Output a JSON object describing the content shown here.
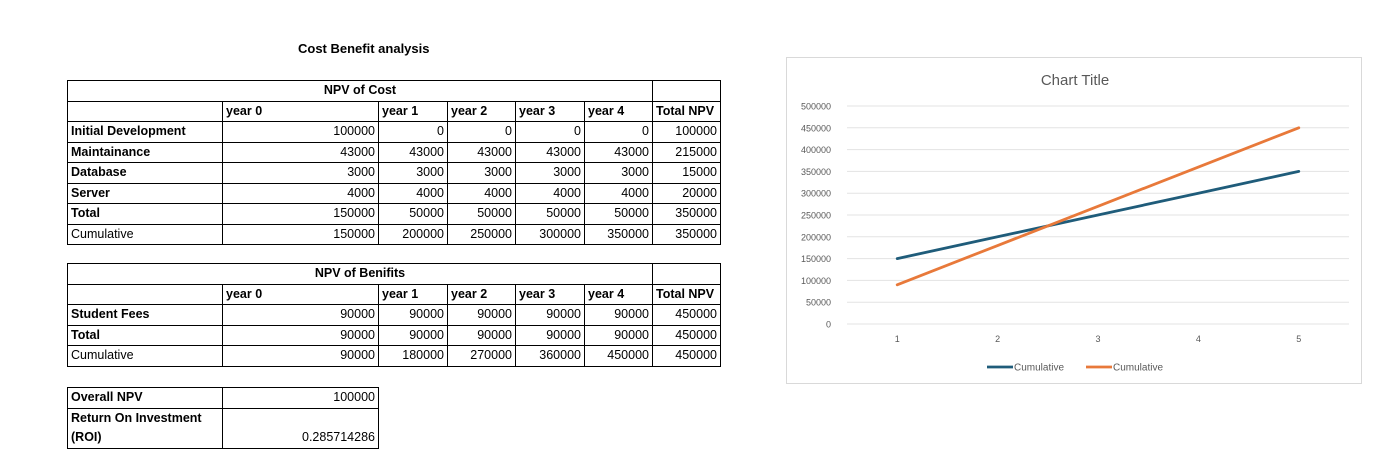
{
  "sheet": {
    "title": "Cost Benefit analysis"
  },
  "cost": {
    "caption": "NPV of Cost",
    "headers": [
      "",
      "year 0",
      "year 1",
      "year 2",
      "year 3",
      "year 4",
      "Total NPV"
    ],
    "rows": [
      {
        "label": "Initial Development",
        "bold": true,
        "values": [
          "100000",
          "0",
          "0",
          "0",
          "0",
          "100000"
        ]
      },
      {
        "label": "Maintainance",
        "bold": true,
        "values": [
          "43000",
          "43000",
          "43000",
          "43000",
          "43000",
          "215000"
        ]
      },
      {
        "label": "Database",
        "bold": true,
        "values": [
          "3000",
          "3000",
          "3000",
          "3000",
          "3000",
          "15000"
        ]
      },
      {
        "label": "Server",
        "bold": true,
        "values": [
          "4000",
          "4000",
          "4000",
          "4000",
          "4000",
          "20000"
        ]
      },
      {
        "label": "Total",
        "bold": true,
        "values": [
          "150000",
          "50000",
          "50000",
          "50000",
          "50000",
          "350000"
        ]
      },
      {
        "label": "Cumulative",
        "bold": false,
        "values": [
          "150000",
          "200000",
          "250000",
          "300000",
          "350000",
          "350000"
        ]
      }
    ]
  },
  "benefit": {
    "caption": "NPV of Benifits",
    "headers": [
      "",
      "year 0",
      "year 1",
      "year 2",
      "year 3",
      "year 4",
      "Total NPV"
    ],
    "rows": [
      {
        "label": "Student Fees",
        "bold": true,
        "values": [
          "90000",
          "90000",
          "90000",
          "90000",
          "90000",
          "450000"
        ]
      },
      {
        "label": "Total",
        "bold": true,
        "values": [
          "90000",
          "90000",
          "90000",
          "90000",
          "90000",
          "450000"
        ]
      },
      {
        "label": "Cumulative",
        "bold": false,
        "values": [
          "90000",
          "180000",
          "270000",
          "360000",
          "450000",
          "450000"
        ]
      }
    ]
  },
  "summary": {
    "overall_label": "Overall NPV",
    "overall_value": "100000",
    "roi_label_1": "Return On Investment",
    "roi_label_2": "(ROI)",
    "roi_value": "0.285714286"
  },
  "chart_data": {
    "type": "line",
    "title": "Chart Title",
    "x": [
      1,
      2,
      3,
      4,
      5
    ],
    "ylim": [
      0,
      500000
    ],
    "yticks": [
      0,
      50000,
      100000,
      150000,
      200000,
      250000,
      300000,
      350000,
      400000,
      450000,
      500000
    ],
    "grid": true,
    "legend": "bottom",
    "series": [
      {
        "name": "Cumulative",
        "color": "#1f5c7a",
        "values": [
          150000,
          200000,
          250000,
          300000,
          350000
        ]
      },
      {
        "name": "Cumulative",
        "color": "#e8793a",
        "values": [
          90000,
          180000,
          270000,
          360000,
          450000
        ]
      }
    ]
  }
}
